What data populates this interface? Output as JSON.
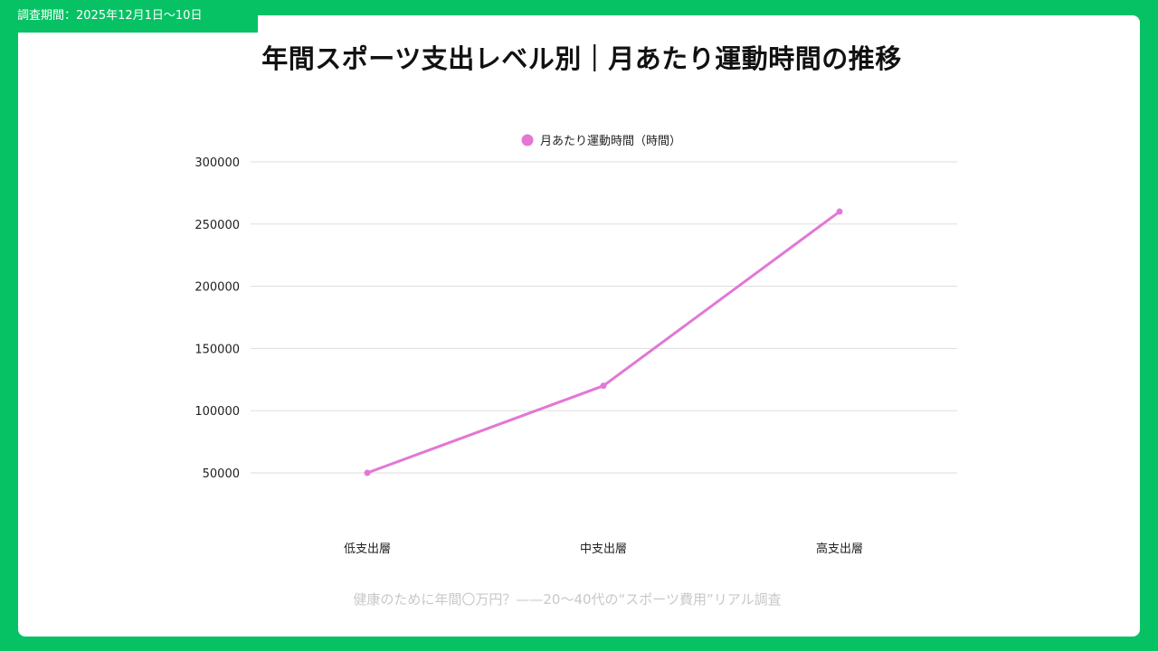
{
  "survey_period": "調査期間：2025年12月1日〜10日",
  "footer_caption": "健康のために年間〇万円？——20〜40代の“スポーツ費用”リアル調査",
  "colors": {
    "background": "#06c264",
    "line": "#e277d6",
    "grid": "#dddddd"
  },
  "chart_data": {
    "type": "line",
    "title": "年間スポーツ支出レベル別｜月あたり運動時間の推移",
    "categories": [
      "低支出層",
      "中支出層",
      "高支出層"
    ],
    "series": [
      {
        "name": "月あたり運動時間（時間）",
        "values": [
          50000,
          120000,
          260000
        ]
      }
    ],
    "y_ticks": [
      "50000",
      "100000",
      "150000",
      "200000",
      "250000",
      "300000"
    ],
    "ylim": [
      0,
      300000
    ],
    "grid": true,
    "legend_position": "top-center"
  }
}
